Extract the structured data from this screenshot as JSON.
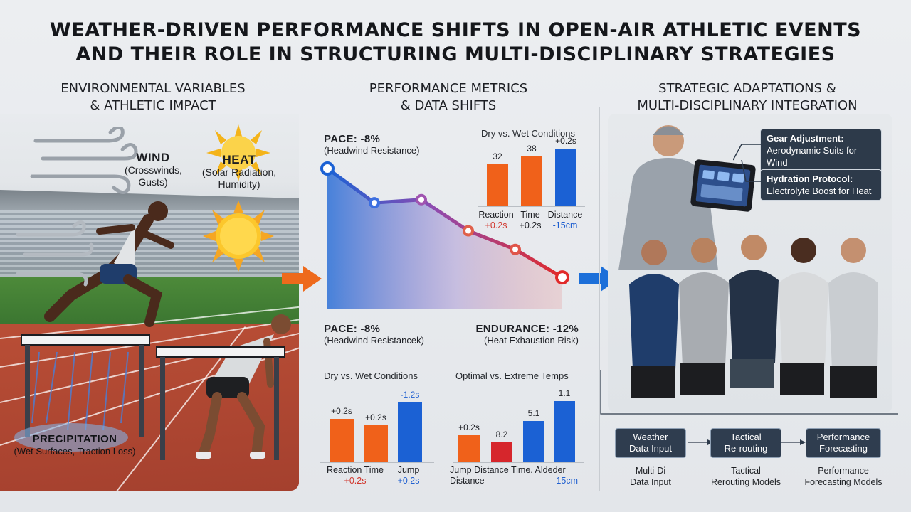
{
  "title": {
    "line1": "WEATHER-DRIVEN PERFORMANCE SHIFTS IN OPEN-AIR ATHLETIC EVENTS",
    "line2": "AND THEIR ROLE IN STRUCTURING MULTI-DISCIPLINARY STRATEGIES"
  },
  "sections": {
    "left": {
      "line1": "ENVIRONMENTAL VARIABLES",
      "line2": "& ATHLETIC IMPACT"
    },
    "middle": {
      "line1": "PERFORMANCE METRICS",
      "line2": "& DATA SHIFTS"
    },
    "right": {
      "line1": "STRATEGIC ADAPTATIONS &",
      "line2": "MULTI-DISCIPLINARY INTEGRATION"
    }
  },
  "left": {
    "wind": {
      "name": "WIND",
      "desc1": "(Crosswinds,",
      "desc2": "Gusts)"
    },
    "heat": {
      "name": "HEAT",
      "desc1": "(Solar Radiation,",
      "desc2": "Humidity)"
    },
    "precip": {
      "name": "PRECIPITATION",
      "desc": "(Wet Surfaces, Traction Loss)"
    }
  },
  "middle": {
    "pace_top": {
      "value": "PACE: -8%",
      "desc": "(Headwind Resistance)"
    },
    "pace_bottom": {
      "value": "PACE: -8%",
      "desc": "(Headwind Resistancek)"
    },
    "endurance": {
      "value": "ENDURANCE: -12%",
      "desc": "(Heat Exhaustion Risk)"
    },
    "chart1": {
      "title": "Dry vs. Wet Conditions",
      "values": [
        "32",
        "38",
        "+0.2s"
      ],
      "labels": [
        "Reaction",
        "Time",
        "Distance"
      ],
      "sub": [
        "+0.2s",
        "+0.2s",
        "-15cm"
      ]
    },
    "chart2": {
      "title": "Dry vs. Wet Conditions",
      "values": [
        "+0.2s",
        "+0.2s",
        "-1.2s"
      ],
      "labels": [
        "Reaction",
        "Time",
        "Jump"
      ],
      "sub": [
        "+0.2s",
        "+0.2s"
      ]
    },
    "chart3": {
      "title": "Optimal vs. Extreme Temps",
      "values": [
        "+0.2s",
        "8.2",
        "5.1",
        "1.1"
      ],
      "labels": [
        "Jump",
        "Distance",
        "Time.",
        "Aldeder"
      ],
      "sub": [
        "Distance",
        "-15cm"
      ]
    }
  },
  "chart_data": [
    {
      "type": "line",
      "x": [
        1,
        2,
        3,
        4,
        5,
        6
      ],
      "y": [
        100,
        78,
        80,
        60,
        48,
        30
      ]
    },
    {
      "type": "bar",
      "title": "Dry vs. Wet Conditions",
      "categories": [
        "Reaction",
        "Time",
        "Distance"
      ],
      "values": [
        32,
        38,
        0.2
      ]
    },
    {
      "type": "bar",
      "title": "Dry vs. Wet Conditions",
      "categories": [
        "Reaction Time",
        "",
        "Jump"
      ],
      "values": [
        0.2,
        0.2,
        -1.2
      ]
    },
    {
      "type": "bar",
      "title": "Optimal vs. Extreme Temps",
      "categories": [
        "Jump Distance",
        "",
        "Time.",
        "Aldeder"
      ],
      "values": [
        0.2,
        8.2,
        5.1,
        1.1
      ]
    }
  ],
  "right": {
    "gear": {
      "title": "Gear Adjustment:",
      "desc": "Aerodynamic Suits for Wind"
    },
    "hydration": {
      "title": "Hydration Protocol:",
      "desc": "Electrolyte Boost for Heat"
    },
    "flow": [
      {
        "box1": "Weather",
        "box2": "Data Input",
        "sub1": "Multi-Di",
        "sub2": "Data Input"
      },
      {
        "box1": "Tactical",
        "box2": "Re-routing",
        "sub1": "Tactical",
        "sub2": "Rerouting Models"
      },
      {
        "box1": "Performance",
        "box2": "Forecasting",
        "sub1": "Performance",
        "sub2": "Forecasting Models"
      }
    ]
  },
  "colors": {
    "orange": "#f0611a",
    "red": "#d6262c",
    "blue": "#1b61d4",
    "accent_arrow_orange": "#ee6a1c",
    "accent_arrow_blue": "#1c6fd9"
  }
}
